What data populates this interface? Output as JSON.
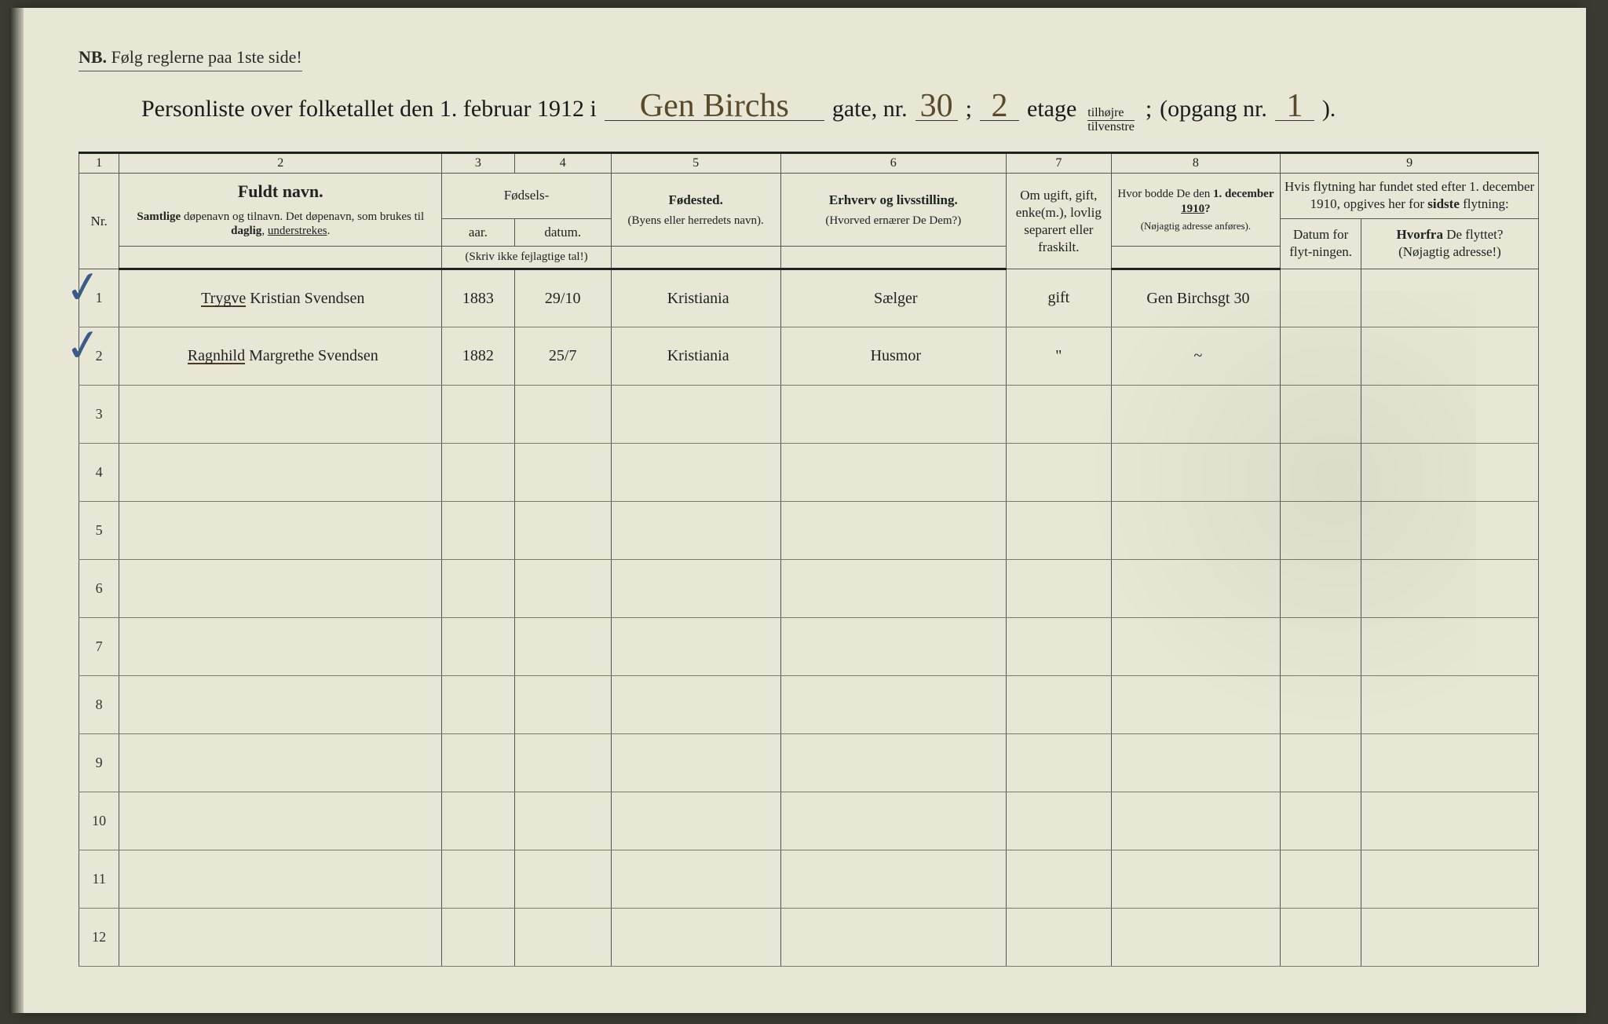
{
  "notice": {
    "nb": "NB.",
    "text": "Følg reglerne paa 1ste side!"
  },
  "title": {
    "prefix": "Personliste over folketallet den 1. februar 1912 i",
    "street_hand": "Gen Birchs",
    "gate_label": "gate, nr.",
    "gate_nr": "30",
    "semicolon": ";",
    "floor_nr": "2",
    "etage": "etage",
    "tilhojre": "tilhøjre",
    "tilvenstre": "tilvenstre",
    "opgang_label": "(opgang  nr.",
    "opgang_nr": "1",
    "close": ")."
  },
  "colnums": [
    "1",
    "2",
    "3",
    "4",
    "5",
    "6",
    "7",
    "8",
    "9"
  ],
  "headers": {
    "nr": "Nr.",
    "name_title": "Fuldt navn.",
    "name_sub": "Samtlige døpenavn og tilnavn.  Det døpenavn, som brukes til daglig, understrekes.",
    "fodsels": "Fødsels-",
    "aar": "aar.",
    "datum": "datum.",
    "aar_note": "(Skriv ikke fejlagtige tal!)",
    "fodested": "Fødested.",
    "fodested_sub": "(Byens eller herredets navn).",
    "erhverv": "Erhverv og livsstilling.",
    "erhverv_sub": "(Hvorved ernærer De Dem?)",
    "marital": "Om ugift, gift, enke(m.), lovlig separert eller fraskilt.",
    "addr": "Hvor bodde De den 1. december 1910?",
    "addr_sub": "(Nøjagtig adresse anføres).",
    "move_top": "Hvis flytning har fundet sted efter 1. december 1910, opgives her for sidste flytning:",
    "move_date": "Datum for flyt-ningen.",
    "move_from": "Hvorfra De flyttet? (Nøjagtig adresse!)"
  },
  "rows": [
    {
      "nr": "1",
      "check": true,
      "name": "Trygve Kristian Svendsen",
      "name_underlined": "Trygve",
      "year": "1883",
      "date": "29/10",
      "birthplace": "Kristiania",
      "occupation": "Sælger",
      "marital": "gift",
      "addr1910": "Gen Birchsgt 30",
      "move_date": "",
      "move_from": ""
    },
    {
      "nr": "2",
      "check": true,
      "name": "Ragnhild Margrethe Svendsen",
      "name_underlined": "Ragnhild",
      "year": "1882",
      "date": "25/7",
      "birthplace": "Kristiania",
      "occupation": "Husmor",
      "marital": "\"",
      "addr1910": "~",
      "move_date": "",
      "move_from": ""
    },
    {
      "nr": "3"
    },
    {
      "nr": "4"
    },
    {
      "nr": "5"
    },
    {
      "nr": "6"
    },
    {
      "nr": "7"
    },
    {
      "nr": "8"
    },
    {
      "nr": "9"
    },
    {
      "nr": "10"
    },
    {
      "nr": "11"
    },
    {
      "nr": "12"
    }
  ],
  "colors": {
    "paper": "#e8e6d4",
    "ink_print": "#222222",
    "ink_hand": "#4a3a22",
    "ink_check": "#3a5a8a",
    "rule": "#555555"
  }
}
